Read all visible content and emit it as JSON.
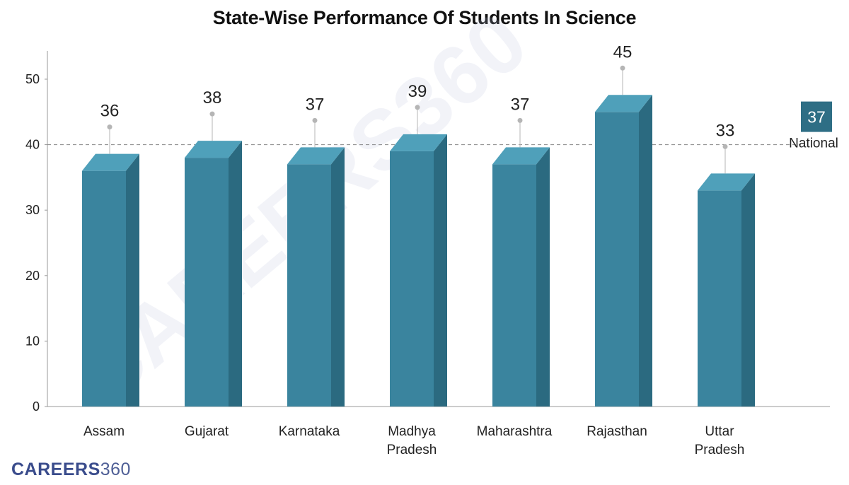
{
  "title": "State-Wise Performance Of Students In Science",
  "brand": {
    "bold": "CAREERS",
    "light": "360",
    "watermark": "CAREERS360"
  },
  "colors": {
    "bar_front": "#3a849e",
    "bar_top": "#4fa0ba",
    "bar_side": "#2b6a80",
    "badge": "#2e6e85",
    "axis": "#999999",
    "reference_line": "#888888",
    "watermark": "#b9c2de"
  },
  "chart_data": {
    "type": "bar",
    "title": "State-Wise Performance Of Students In Science",
    "xlabel": "",
    "ylabel": "",
    "categories": [
      [
        "Assam"
      ],
      [
        "Gujarat"
      ],
      [
        "Karnataka"
      ],
      [
        "Madhya",
        "Pradesh"
      ],
      [
        "Maharashtra"
      ],
      [
        "Rajasthan"
      ],
      [
        "Uttar",
        "Pradesh"
      ]
    ],
    "values": [
      36,
      38,
      37,
      39,
      37,
      45,
      33
    ],
    "data_labels": [
      "36",
      "38",
      "37",
      "39",
      "37",
      "45",
      "33"
    ],
    "ylim": [
      0,
      50
    ],
    "yticks": [
      0,
      10,
      20,
      30,
      40,
      50
    ],
    "reference_line": {
      "value": 40,
      "badge_value": "37",
      "label": "National"
    },
    "grid": false,
    "legend": "none",
    "style": "3d-columns"
  }
}
